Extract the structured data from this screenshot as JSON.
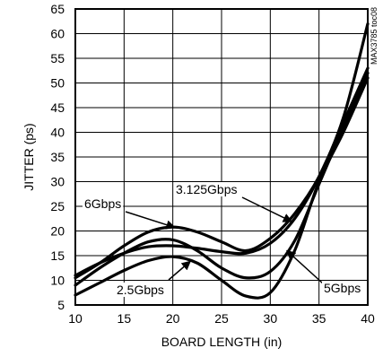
{
  "chart_data": {
    "type": "line",
    "title": "",
    "xlabel": "BOARD LENGTH (in)",
    "ylabel": "JITTER (ps)",
    "xlim": [
      10,
      40
    ],
    "ylim": [
      5,
      65
    ],
    "xticks": [
      10,
      15,
      20,
      25,
      30,
      35,
      40
    ],
    "yticks": [
      5,
      10,
      15,
      20,
      25,
      30,
      35,
      40,
      45,
      50,
      55,
      60,
      65
    ],
    "grid": true,
    "watermark": "MAX3785 toc08",
    "series": [
      {
        "name": "6Gbps",
        "x": [
          10,
          12.5,
          15,
          17.5,
          20,
          22.5,
          25,
          27.5,
          30,
          32.5,
          35,
          37.5,
          40
        ],
        "y": [
          10.5,
          13.5,
          17,
          19.8,
          20.8,
          19.8,
          17.8,
          16,
          18.5,
          23.5,
          31,
          42,
          53
        ]
      },
      {
        "name": "3.125Gbps",
        "x": [
          10,
          12.5,
          15,
          17.5,
          20,
          22.5,
          25,
          27.5,
          30,
          32.5,
          35,
          37.5,
          40
        ],
        "y": [
          11,
          13.5,
          15.5,
          16.8,
          17,
          16.5,
          15.8,
          15.5,
          17.5,
          22.5,
          31,
          43,
          62
        ]
      },
      {
        "name": "5Gbps",
        "x": [
          10,
          12.5,
          15,
          17.5,
          20,
          22.5,
          25,
          27.5,
          30,
          32.5,
          35,
          37.5,
          40
        ],
        "y": [
          9,
          12.5,
          15.5,
          17.8,
          18.2,
          16,
          12.5,
          10.5,
          11.8,
          18,
          29.5,
          41,
          52
        ]
      },
      {
        "name": "2.5Gbps",
        "x": [
          10,
          12.5,
          15,
          17.5,
          20,
          22.5,
          25,
          27.5,
          30,
          32.5,
          35,
          37.5,
          40
        ],
        "y": [
          7,
          9.5,
          12,
          14,
          14.8,
          13.5,
          10,
          6.8,
          7.5,
          16,
          30,
          40,
          51
        ]
      }
    ],
    "annotations": [
      {
        "label": "6Gbps",
        "series": "6Gbps"
      },
      {
        "label": "3.125Gbps",
        "series": "3.125Gbps"
      },
      {
        "label": "5Gbps",
        "series": "5Gbps"
      },
      {
        "label": "2.5Gbps",
        "series": "2.5Gbps"
      }
    ]
  }
}
